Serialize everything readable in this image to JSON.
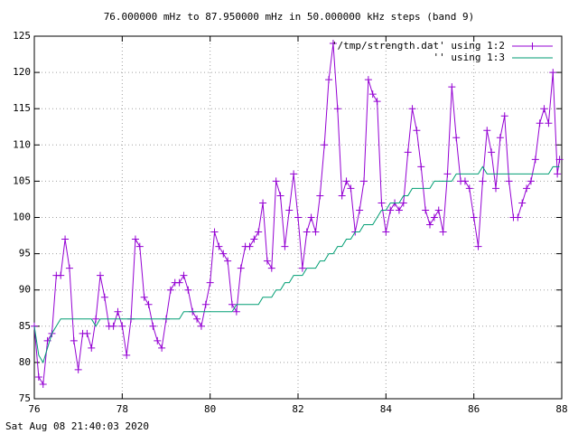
{
  "chart_data": {
    "type": "line",
    "title": "76.000000 mHz to 87.950000 mHz in 50.000000 kHz steps (band 9)",
    "timestamp": "Sat Aug 08 21:40:03 2020",
    "x": [
      76.0,
      76.1,
      76.2,
      76.3,
      76.4,
      76.5,
      76.6,
      76.7,
      76.8,
      76.9,
      77.0,
      77.1,
      77.2,
      77.3,
      77.4,
      77.5,
      77.6,
      77.7,
      77.8,
      77.9,
      78.0,
      78.1,
      78.2,
      78.3,
      78.4,
      78.5,
      78.6,
      78.7,
      78.8,
      78.9,
      79.0,
      79.1,
      79.2,
      79.3,
      79.4,
      79.5,
      79.6,
      79.7,
      79.8,
      79.9,
      80.0,
      80.1,
      80.2,
      80.3,
      80.4,
      80.5,
      80.6,
      80.7,
      80.8,
      80.9,
      81.0,
      81.1,
      81.2,
      81.3,
      81.4,
      81.5,
      81.6,
      81.7,
      81.8,
      81.9,
      82.0,
      82.1,
      82.2,
      82.3,
      82.4,
      82.5,
      82.6,
      82.7,
      82.8,
      82.9,
      83.0,
      83.1,
      83.2,
      83.3,
      83.4,
      83.5,
      83.6,
      83.7,
      83.8,
      83.9,
      84.0,
      84.1,
      84.2,
      84.3,
      84.4,
      84.5,
      84.6,
      84.7,
      84.8,
      84.9,
      85.0,
      85.1,
      85.2,
      85.3,
      85.4,
      85.5,
      85.6,
      85.7,
      85.8,
      85.9,
      86.0,
      86.1,
      86.2,
      86.3,
      86.4,
      86.5,
      86.6,
      86.7,
      86.8,
      86.9,
      87.0,
      87.1,
      87.2,
      87.3,
      87.4,
      87.5,
      87.6,
      87.7,
      87.8,
      87.9,
      87.95
    ],
    "series": [
      {
        "name": "'/tmp/strength.dat' using 1:2",
        "color": "#9400d3",
        "marker": "+",
        "values": [
          85,
          78,
          77,
          83,
          84,
          92,
          92,
          97,
          93,
          83,
          79,
          84,
          84,
          82,
          86,
          92,
          89,
          85,
          85,
          87,
          85,
          81,
          86,
          97,
          96,
          89,
          88,
          85,
          83,
          82,
          86,
          90,
          91,
          91,
          92,
          90,
          87,
          86,
          85,
          88,
          91,
          98,
          96,
          95,
          94,
          88,
          87,
          93,
          96,
          96,
          97,
          98,
          102,
          94,
          93,
          105,
          103,
          96,
          101,
          106,
          100,
          93,
          98,
          100,
          98,
          103,
          110,
          119,
          124,
          115,
          103,
          105,
          104,
          98,
          101,
          105,
          119,
          117,
          116,
          102,
          98,
          101,
          102,
          101,
          102,
          109,
          115,
          112,
          107,
          101,
          99,
          100,
          101,
          98,
          106,
          118,
          111,
          105,
          105,
          104,
          100,
          96,
          105,
          112,
          109,
          104,
          111,
          114,
          105,
          100,
          100,
          102,
          104,
          105,
          108,
          113,
          115,
          113,
          120,
          106,
          108
        ]
      },
      {
        "name": "'' using 1:3",
        "color": "#009e73",
        "values": [
          85,
          81,
          80,
          82,
          84,
          85,
          86,
          86,
          86,
          86,
          86,
          86,
          86,
          86,
          85,
          86,
          86,
          86,
          86,
          86,
          86,
          86,
          86,
          86,
          86,
          86,
          86,
          86,
          86,
          86,
          86,
          86,
          86,
          86,
          87,
          87,
          87,
          87,
          87,
          87,
          87,
          87,
          87,
          87,
          87,
          87,
          88,
          88,
          88,
          88,
          88,
          88,
          89,
          89,
          89,
          90,
          90,
          91,
          91,
          92,
          92,
          92,
          93,
          93,
          93,
          94,
          94,
          95,
          95,
          96,
          96,
          97,
          97,
          98,
          98,
          99,
          99,
          99,
          100,
          101,
          101,
          102,
          102,
          102,
          103,
          103,
          104,
          104,
          104,
          104,
          104,
          105,
          105,
          105,
          105,
          105,
          106,
          106,
          106,
          106,
          106,
          106,
          107,
          106,
          106,
          106,
          106,
          106,
          106,
          106,
          106,
          106,
          106,
          106,
          106,
          106,
          106,
          106,
          107,
          107,
          107
        ]
      }
    ],
    "xlim": [
      76,
      88
    ],
    "xticks": [
      76,
      78,
      80,
      82,
      84,
      86,
      88
    ],
    "ylim": [
      75,
      125
    ],
    "yticks": [
      75,
      80,
      85,
      90,
      95,
      100,
      105,
      110,
      115,
      120,
      125
    ],
    "grid": true,
    "legend": "top-right"
  }
}
